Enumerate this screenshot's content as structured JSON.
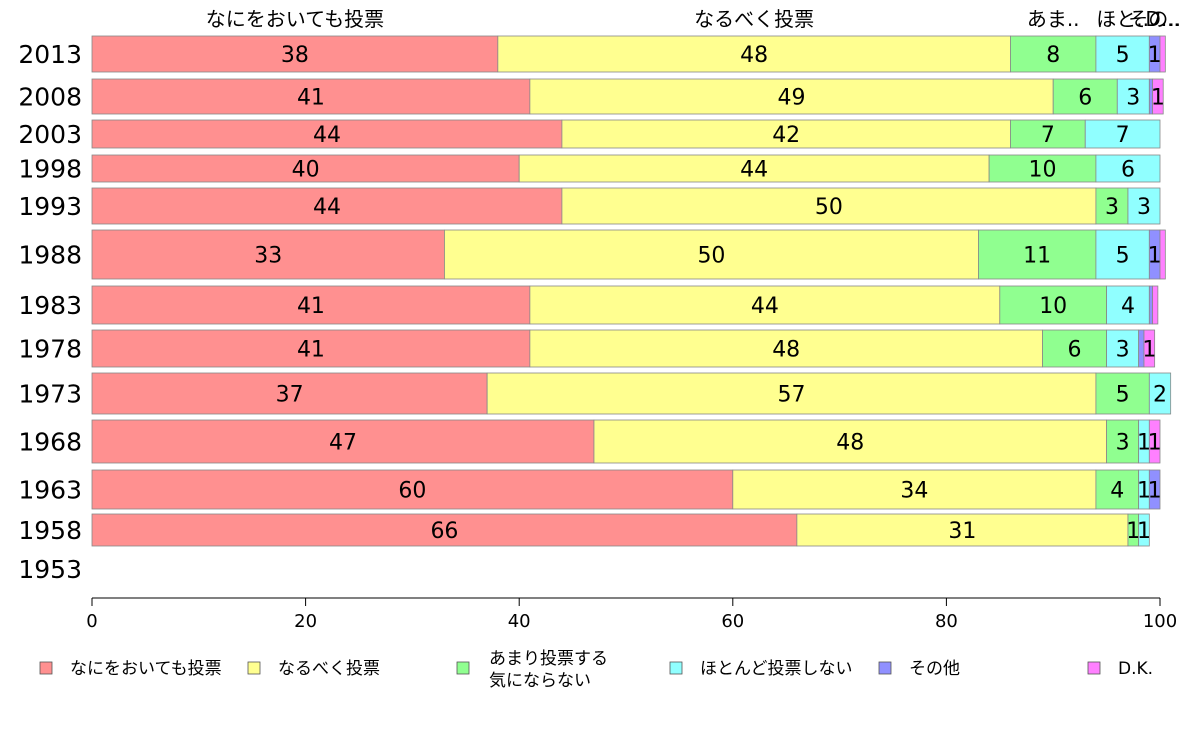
{
  "chart_data": {
    "type": "bar",
    "orientation": "horizontal",
    "stacked": true,
    "categories": [
      "2013",
      "2008",
      "2003",
      "1998",
      "1993",
      "1988",
      "1983",
      "1978",
      "1973",
      "1968",
      "1963",
      "1958",
      "1953"
    ],
    "series": [
      {
        "name": "なにをおいても投票",
        "short_label": "なにをおいても投票",
        "color": "#ff9090",
        "values": [
          38,
          41,
          44,
          40,
          44,
          33,
          41,
          41,
          37,
          47,
          60,
          66,
          null
        ]
      },
      {
        "name": "なるべく投票",
        "short_label": "なるべく投票",
        "color": "#ffff90",
        "values": [
          48,
          49,
          42,
          44,
          50,
          50,
          44,
          48,
          57,
          48,
          34,
          31,
          null
        ]
      },
      {
        "name": "あまり投票する気にならない",
        "legend_lines": [
          "あまり投票する",
          "気にならない"
        ],
        "short_label": "あま..",
        "color": "#90ff90",
        "values": [
          8,
          6,
          7,
          10,
          3,
          11,
          10,
          6,
          5,
          3,
          4,
          1,
          null
        ]
      },
      {
        "name": "ほとんど投票しない",
        "short_label": "ほと..",
        "color": "#90ffff",
        "values": [
          5,
          3,
          7,
          6,
          3,
          5,
          4,
          3,
          2,
          1,
          1,
          1,
          null
        ]
      },
      {
        "name": "その他",
        "short_label": "その..",
        "color": "#9090ff",
        "values": [
          1,
          0.3,
          0,
          0,
          0,
          1,
          0.3,
          0.5,
          0,
          0,
          1,
          0,
          null
        ]
      },
      {
        "name": "D.K.",
        "short_label": "D...",
        "color": "#ff80ff",
        "values": [
          0.5,
          1,
          0,
          0,
          0,
          0.5,
          0.5,
          1,
          0,
          1,
          0,
          0,
          null
        ]
      }
    ],
    "data_labels": [
      [
        "38",
        "48",
        "8",
        "5",
        "1",
        ""
      ],
      [
        "41",
        "49",
        "6",
        "3",
        "",
        "1"
      ],
      [
        "44",
        "42",
        "7",
        "7",
        "",
        ""
      ],
      [
        "40",
        "44",
        "10",
        "6",
        "",
        ""
      ],
      [
        "44",
        "50",
        "3",
        "3",
        "",
        ""
      ],
      [
        "33",
        "50",
        "11",
        "5",
        "1",
        ""
      ],
      [
        "41",
        "44",
        "10",
        "4",
        "",
        ""
      ],
      [
        "41",
        "48",
        "6",
        "3",
        "",
        "1"
      ],
      [
        "37",
        "57",
        "5",
        "2",
        "",
        ""
      ],
      [
        "47",
        "48",
        "3",
        "1",
        "",
        "1"
      ],
      [
        "60",
        "34",
        "4",
        "1",
        "1",
        ""
      ],
      [
        "66",
        "31",
        "1",
        "1",
        "",
        ""
      ],
      [
        "",
        "",
        "",
        "",
        "",
        ""
      ]
    ],
    "xlim": [
      0,
      100
    ],
    "xticks": [
      0,
      20,
      40,
      60,
      80,
      100
    ],
    "grid": false,
    "legend_position": "bottom"
  }
}
